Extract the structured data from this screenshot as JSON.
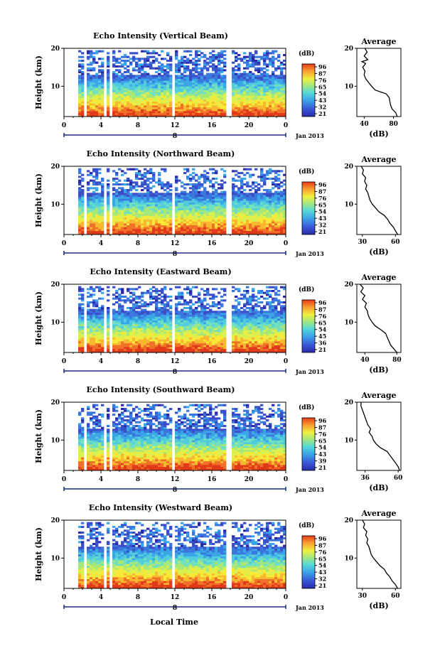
{
  "date_label": "Jan 2013",
  "day_label": "8",
  "xlabel": "Local Time",
  "colorbar_unit": "(dB)",
  "average_title": "Average",
  "average_xlabel": "(dB)",
  "ylabel": "Height (km)",
  "chart_data": [
    {
      "type": "heatmap",
      "title": "Echo Intensity (Vertical Beam)",
      "x_ticks": [
        "0",
        "4",
        "8",
        "12",
        "16",
        "20",
        "0"
      ],
      "y_ticks": [
        "20",
        "10"
      ],
      "ylim": [
        2,
        20
      ],
      "xlim": [
        0,
        24
      ],
      "colorbar_ticks": [
        "96",
        "87",
        "76",
        "65",
        "54",
        "43",
        "32",
        "21"
      ],
      "average": {
        "ticks": [
          "40",
          "80"
        ],
        "xlim": [
          30,
          90
        ],
        "profile": [
          [
            2,
            85
          ],
          [
            3,
            83
          ],
          [
            4,
            78
          ],
          [
            5,
            76
          ],
          [
            6,
            75
          ],
          [
            7,
            74
          ],
          [
            8,
            70
          ],
          [
            8.5,
            62
          ],
          [
            9,
            55
          ],
          [
            10,
            50
          ],
          [
            11,
            46
          ],
          [
            12,
            42
          ],
          [
            13,
            40
          ],
          [
            14,
            41
          ],
          [
            15,
            38
          ],
          [
            16,
            42
          ],
          [
            16.5,
            37
          ],
          [
            17,
            45
          ],
          [
            18,
            40
          ],
          [
            19,
            44
          ],
          [
            20,
            41
          ]
        ]
      }
    },
    {
      "type": "heatmap",
      "title": "Echo Intensity (Northward Beam)",
      "x_ticks": [
        "0",
        "4",
        "8",
        "12",
        "16",
        "20",
        "0"
      ],
      "y_ticks": [
        "20",
        "10"
      ],
      "ylim": [
        2,
        20
      ],
      "xlim": [
        0,
        24
      ],
      "colorbar_ticks": [
        "96",
        "87",
        "76",
        "65",
        "54",
        "43",
        "32",
        "21"
      ],
      "average": {
        "ticks": [
          "30",
          "60"
        ],
        "xlim": [
          25,
          65
        ],
        "profile": [
          [
            2,
            62
          ],
          [
            3,
            60
          ],
          [
            4,
            58
          ],
          [
            5,
            55
          ],
          [
            6,
            53
          ],
          [
            7,
            50
          ],
          [
            8,
            45
          ],
          [
            9,
            42
          ],
          [
            10,
            39
          ],
          [
            11,
            37
          ],
          [
            12,
            36
          ],
          [
            13,
            35
          ],
          [
            14,
            33
          ],
          [
            15,
            34
          ],
          [
            16,
            32
          ],
          [
            17,
            33
          ],
          [
            18,
            30
          ],
          [
            19,
            31
          ],
          [
            20,
            29
          ]
        ]
      }
    },
    {
      "type": "heatmap",
      "title": "Echo Intensity (Eastward Beam)",
      "x_ticks": [
        "0",
        "4",
        "8",
        "12",
        "16",
        "20",
        "0"
      ],
      "y_ticks": [
        "20",
        "10"
      ],
      "ylim": [
        2,
        20
      ],
      "xlim": [
        0,
        24
      ],
      "colorbar_ticks": [
        "96",
        "87",
        "76",
        "65",
        "54",
        "45",
        "36",
        "21"
      ],
      "average": {
        "ticks": [
          "40",
          "80"
        ],
        "xlim": [
          30,
          85
        ],
        "profile": [
          [
            2,
            80
          ],
          [
            3,
            76
          ],
          [
            4,
            72
          ],
          [
            5,
            70
          ],
          [
            6,
            68
          ],
          [
            7,
            66
          ],
          [
            8,
            60
          ],
          [
            9,
            53
          ],
          [
            10,
            49
          ],
          [
            11,
            46
          ],
          [
            12,
            44
          ],
          [
            13,
            43
          ],
          [
            14,
            40
          ],
          [
            15,
            42
          ],
          [
            16,
            37
          ],
          [
            17,
            40
          ],
          [
            18,
            35
          ],
          [
            19,
            38
          ],
          [
            20,
            34
          ]
        ]
      }
    },
    {
      "type": "heatmap",
      "title": "Echo Intensity (Southward Beam)",
      "x_ticks": [
        "0",
        "4",
        "8",
        "12",
        "16",
        "20",
        "0"
      ],
      "y_ticks": [
        "20",
        "10"
      ],
      "ylim": [
        2,
        20
      ],
      "xlim": [
        0,
        24
      ],
      "colorbar_ticks": [
        "96",
        "87",
        "76",
        "65",
        "54",
        "43",
        "39",
        "21"
      ],
      "average": {
        "ticks": [
          "36",
          "60"
        ],
        "xlim": [
          30,
          62
        ],
        "profile": [
          [
            2,
            61
          ],
          [
            3,
            60
          ],
          [
            4,
            58
          ],
          [
            5,
            56
          ],
          [
            6,
            54
          ],
          [
            7,
            52
          ],
          [
            8,
            47
          ],
          [
            9,
            44
          ],
          [
            10,
            42
          ],
          [
            11,
            41
          ],
          [
            12,
            39
          ],
          [
            13,
            40
          ],
          [
            14,
            38
          ],
          [
            15,
            37
          ],
          [
            16,
            36
          ],
          [
            17,
            35
          ],
          [
            18,
            34
          ],
          [
            19,
            33
          ],
          [
            20,
            33
          ]
        ]
      }
    },
    {
      "type": "heatmap",
      "title": "Echo Intensity (Westward Beam)",
      "x_ticks": [
        "0",
        "4",
        "8",
        "12",
        "16",
        "20",
        "0"
      ],
      "y_ticks": [
        "20",
        "10"
      ],
      "ylim": [
        2,
        20
      ],
      "xlim": [
        0,
        24
      ],
      "colorbar_ticks": [
        "96",
        "87",
        "76",
        "65",
        "54",
        "43",
        "32",
        "21"
      ],
      "average": {
        "ticks": [
          "30",
          "60"
        ],
        "xlim": [
          25,
          65
        ],
        "profile": [
          [
            2,
            62
          ],
          [
            3,
            60
          ],
          [
            4,
            57
          ],
          [
            5,
            55
          ],
          [
            6,
            52
          ],
          [
            7,
            50
          ],
          [
            8,
            46
          ],
          [
            9,
            43
          ],
          [
            10,
            40
          ],
          [
            11,
            38
          ],
          [
            12,
            37
          ],
          [
            13,
            36
          ],
          [
            14,
            34
          ],
          [
            15,
            35
          ],
          [
            16,
            33
          ],
          [
            17,
            34
          ],
          [
            18,
            31
          ],
          [
            19,
            32
          ],
          [
            20,
            30
          ]
        ]
      }
    }
  ]
}
